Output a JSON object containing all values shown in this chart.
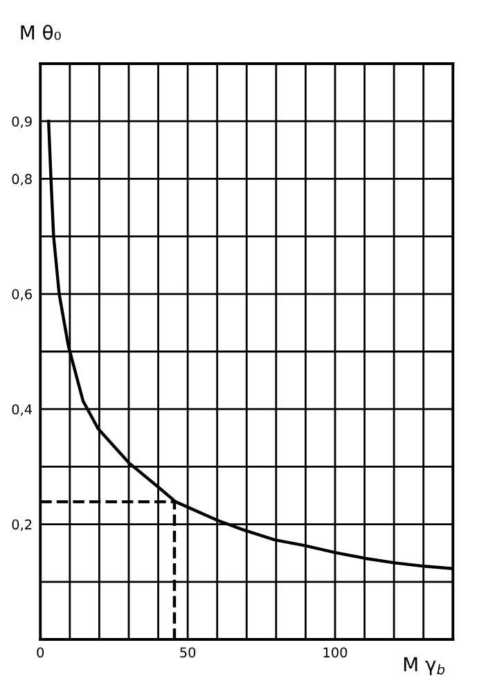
{
  "chart_data": {
    "type": "line",
    "xlabel": "M γ$_{b}$",
    "ylabel": "M θ₀",
    "series": [
      {
        "color": "#000000",
        "x": [
          2.8,
          3.6,
          4.5,
          6.4,
          9.5,
          14.5,
          19.6,
          30.2,
          40.4,
          45.9,
          60,
          68.5,
          79.5,
          89.7,
          99.9,
          110,
          120.2,
          130.4,
          139.8
        ],
        "values": [
          0.9,
          0.8,
          0.7,
          0.6,
          0.51,
          0.414,
          0.366,
          0.306,
          0.263,
          0.239,
          0.207,
          0.191,
          0.173,
          0.163,
          0.151,
          0.141,
          0.133,
          0.127,
          0.123
        ]
      },
      {
        "color": "#000000",
        "line_style": "dashed",
        "x": [
          0,
          45.5,
          45.5
        ],
        "values": [
          0.239,
          0.239,
          0
        ]
      }
    ],
    "xlim": [
      0,
      140
    ],
    "ylim": [
      0,
      1
    ],
    "xticks": [
      0,
      {
        "value": 10,
        "label": null
      },
      {
        "value": 20,
        "label": null
      },
      {
        "value": 30,
        "label": null
      },
      {
        "value": 40,
        "label": null
      },
      50,
      {
        "value": 60,
        "label": null
      },
      {
        "value": 70,
        "label": null
      },
      {
        "value": 80,
        "label": null
      },
      {
        "value": 90,
        "label": null
      },
      100,
      {
        "value": 110,
        "label": null
      },
      {
        "value": 120,
        "label": null
      },
      {
        "value": 130,
        "label": null
      },
      {
        "value": 140,
        "label": null
      }
    ],
    "yticks": [
      {
        "value": 0.1,
        "label": null
      },
      {
        "value": 0.2,
        "label": "0,2"
      },
      {
        "value": 0.3,
        "label": null
      },
      {
        "value": 0.4,
        "label": "0,4"
      },
      {
        "value": 0.5,
        "label": null
      },
      {
        "value": 0.6,
        "label": "0,6"
      },
      {
        "value": 0.7,
        "label": null
      },
      {
        "value": 0.8,
        "label": "0,8"
      },
      {
        "value": 0.9,
        "label": "0,9"
      },
      {
        "value": 1.0,
        "label": null
      }
    ],
    "grid": true,
    "line_style": "solid",
    "marker": "none"
  }
}
